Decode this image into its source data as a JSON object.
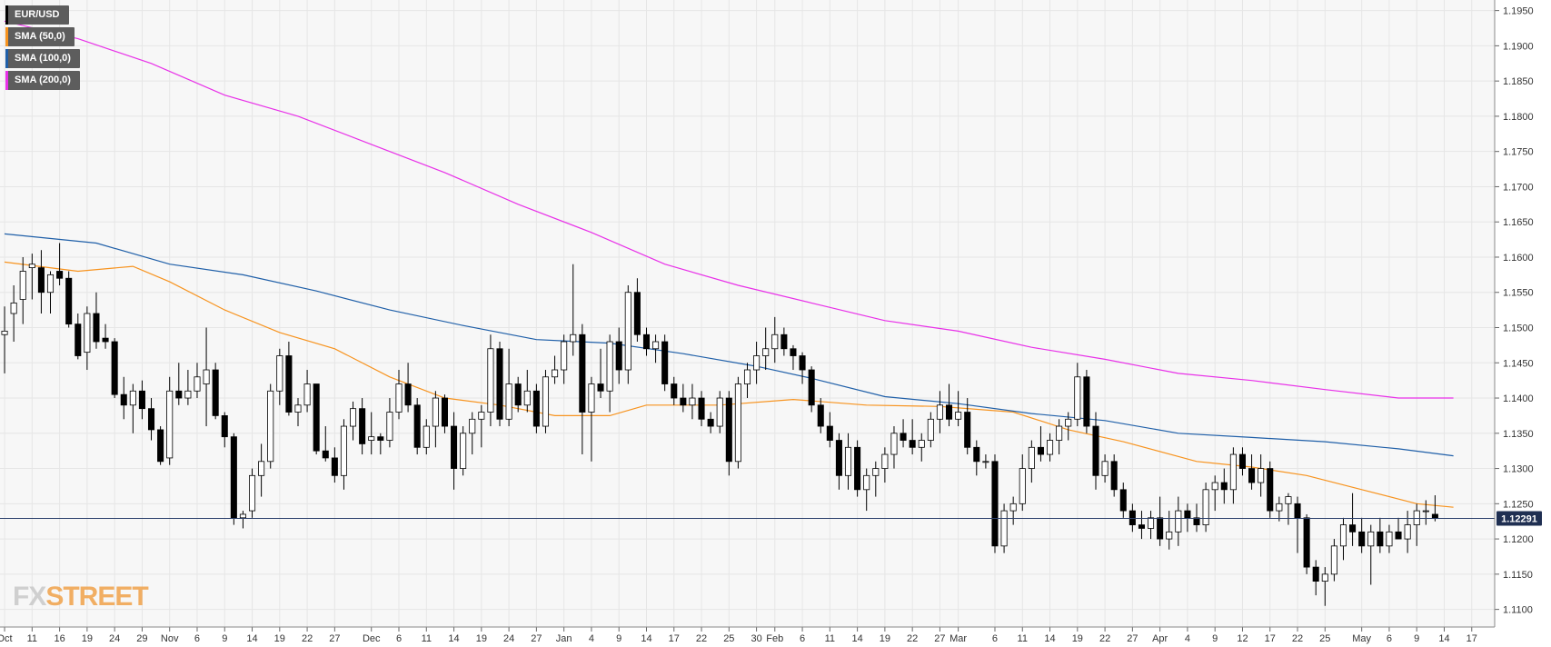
{
  "chart_data": {
    "type": "candlestick",
    "symbol": "EUR/USD",
    "legend": [
      {
        "label": "EUR/USD",
        "color": "#000000"
      },
      {
        "label": "SMA (50,0)",
        "color": "#f7931e"
      },
      {
        "label": "SMA (100,0)",
        "color": "#1f5fa8"
      },
      {
        "label": "SMA (200,0)",
        "color": "#e830e8"
      }
    ],
    "ylim": [
      1.1075,
      1.1965
    ],
    "y_ticks": [
      "1.1100",
      "1.1150",
      "1.1200",
      "1.1250",
      "1.1300",
      "1.1350",
      "1.1400",
      "1.1450",
      "1.1500",
      "1.1550",
      "1.1600",
      "1.1650",
      "1.1700",
      "1.1750",
      "1.1800",
      "1.1850",
      "1.1900",
      "1.1950"
    ],
    "x_ticks": [
      {
        "i": 0,
        "label": "Oct"
      },
      {
        "i": 3,
        "label": "11"
      },
      {
        "i": 6,
        "label": "16"
      },
      {
        "i": 9,
        "label": "19"
      },
      {
        "i": 12,
        "label": "24"
      },
      {
        "i": 15,
        "label": "29"
      },
      {
        "i": 18,
        "label": "Nov"
      },
      {
        "i": 21,
        "label": "6"
      },
      {
        "i": 24,
        "label": "9"
      },
      {
        "i": 27,
        "label": "14"
      },
      {
        "i": 30,
        "label": "19"
      },
      {
        "i": 33,
        "label": "22"
      },
      {
        "i": 36,
        "label": "27"
      },
      {
        "i": 40,
        "label": "Dec"
      },
      {
        "i": 43,
        "label": "6"
      },
      {
        "i": 46,
        "label": "11"
      },
      {
        "i": 49,
        "label": "14"
      },
      {
        "i": 52,
        "label": "19"
      },
      {
        "i": 55,
        "label": "24"
      },
      {
        "i": 58,
        "label": "27"
      },
      {
        "i": 61,
        "label": "Jan"
      },
      {
        "i": 64,
        "label": "4"
      },
      {
        "i": 67,
        "label": "9"
      },
      {
        "i": 70,
        "label": "14"
      },
      {
        "i": 73,
        "label": "17"
      },
      {
        "i": 76,
        "label": "22"
      },
      {
        "i": 79,
        "label": "25"
      },
      {
        "i": 82,
        "label": "30"
      },
      {
        "i": 84,
        "label": "Feb"
      },
      {
        "i": 87,
        "label": "6"
      },
      {
        "i": 90,
        "label": "11"
      },
      {
        "i": 93,
        "label": "14"
      },
      {
        "i": 96,
        "label": "19"
      },
      {
        "i": 99,
        "label": "22"
      },
      {
        "i": 102,
        "label": "27"
      },
      {
        "i": 104,
        "label": "Mar"
      },
      {
        "i": 108,
        "label": "6"
      },
      {
        "i": 111,
        "label": "11"
      },
      {
        "i": 114,
        "label": "14"
      },
      {
        "i": 117,
        "label": "19"
      },
      {
        "i": 120,
        "label": "22"
      },
      {
        "i": 123,
        "label": "27"
      },
      {
        "i": 126,
        "label": "Apr"
      },
      {
        "i": 129,
        "label": "4"
      },
      {
        "i": 132,
        "label": "9"
      },
      {
        "i": 135,
        "label": "12"
      },
      {
        "i": 138,
        "label": "17"
      },
      {
        "i": 141,
        "label": "22"
      },
      {
        "i": 144,
        "label": "25"
      },
      {
        "i": 148,
        "label": "May"
      },
      {
        "i": 151,
        "label": "6"
      },
      {
        "i": 154,
        "label": "9"
      },
      {
        "i": 157,
        "label": "14"
      },
      {
        "i": 160,
        "label": "17"
      }
    ],
    "x_count": 163,
    "current_price": "1.12291",
    "current_value": 1.12291,
    "candles": [
      [
        1.149,
        1.153,
        1.1435,
        1.1495
      ],
      [
        1.152,
        1.156,
        1.148,
        1.1535
      ],
      [
        1.154,
        1.16,
        1.1505,
        1.158
      ],
      [
        1.1585,
        1.1605,
        1.154,
        1.159
      ],
      [
        1.1585,
        1.161,
        1.152,
        1.155
      ],
      [
        1.155,
        1.158,
        1.152,
        1.1575
      ],
      [
        1.158,
        1.162,
        1.156,
        1.157
      ],
      [
        1.157,
        1.158,
        1.15,
        1.1505
      ],
      [
        1.1505,
        1.152,
        1.1455,
        1.146
      ],
      [
        1.1465,
        1.153,
        1.144,
        1.152
      ],
      [
        1.152,
        1.155,
        1.147,
        1.148
      ],
      [
        1.1485,
        1.1505,
        1.147,
        1.148
      ],
      [
        1.148,
        1.1485,
        1.14,
        1.1405
      ],
      [
        1.1405,
        1.143,
        1.137,
        1.139
      ],
      [
        1.139,
        1.142,
        1.135,
        1.141
      ],
      [
        1.141,
        1.1425,
        1.137,
        1.1385
      ],
      [
        1.1385,
        1.14,
        1.134,
        1.1355
      ],
      [
        1.1355,
        1.136,
        1.1305,
        1.131
      ],
      [
        1.1315,
        1.143,
        1.1305,
        1.141
      ],
      [
        1.141,
        1.145,
        1.139,
        1.14
      ],
      [
        1.14,
        1.144,
        1.139,
        1.141
      ],
      [
        1.141,
        1.145,
        1.14,
        1.143
      ],
      [
        1.142,
        1.15,
        1.136,
        1.144
      ],
      [
        1.144,
        1.145,
        1.137,
        1.1375
      ],
      [
        1.1375,
        1.138,
        1.133,
        1.1345
      ],
      [
        1.1345,
        1.135,
        1.122,
        1.123
      ],
      [
        1.123,
        1.124,
        1.1215,
        1.1235
      ],
      [
        1.124,
        1.13,
        1.123,
        1.129
      ],
      [
        1.129,
        1.1335,
        1.126,
        1.131
      ],
      [
        1.131,
        1.142,
        1.13,
        1.141
      ],
      [
        1.141,
        1.147,
        1.139,
        1.146
      ],
      [
        1.146,
        1.148,
        1.1375,
        1.138
      ],
      [
        1.138,
        1.14,
        1.136,
        1.139
      ],
      [
        1.139,
        1.144,
        1.138,
        1.142
      ],
      [
        1.142,
        1.142,
        1.132,
        1.1325
      ],
      [
        1.1325,
        1.136,
        1.131,
        1.1315
      ],
      [
        1.1315,
        1.133,
        1.128,
        1.129
      ],
      [
        1.129,
        1.137,
        1.127,
        1.136
      ],
      [
        1.136,
        1.1395,
        1.134,
        1.1385
      ],
      [
        1.1385,
        1.14,
        1.132,
        1.1335
      ],
      [
        1.134,
        1.138,
        1.132,
        1.1345
      ],
      [
        1.1345,
        1.135,
        1.132,
        1.134
      ],
      [
        1.134,
        1.14,
        1.133,
        1.138
      ],
      [
        1.138,
        1.144,
        1.137,
        1.142
      ],
      [
        1.142,
        1.145,
        1.138,
        1.139
      ],
      [
        1.139,
        1.14,
        1.132,
        1.133
      ],
      [
        1.133,
        1.137,
        1.132,
        1.136
      ],
      [
        1.136,
        1.141,
        1.133,
        1.14
      ],
      [
        1.14,
        1.1405,
        1.135,
        1.136
      ],
      [
        1.136,
        1.138,
        1.127,
        1.13
      ],
      [
        1.13,
        1.136,
        1.129,
        1.135
      ],
      [
        1.135,
        1.138,
        1.132,
        1.137
      ],
      [
        1.137,
        1.139,
        1.133,
        1.138
      ],
      [
        1.138,
        1.149,
        1.136,
        1.147
      ],
      [
        1.147,
        1.148,
        1.136,
        1.137
      ],
      [
        1.137,
        1.147,
        1.136,
        1.142
      ],
      [
        1.142,
        1.143,
        1.138,
        1.139
      ],
      [
        1.139,
        1.144,
        1.138,
        1.141
      ],
      [
        1.141,
        1.142,
        1.135,
        1.136
      ],
      [
        1.136,
        1.144,
        1.135,
        1.143
      ],
      [
        1.143,
        1.146,
        1.142,
        1.144
      ],
      [
        1.144,
        1.149,
        1.142,
        1.148
      ],
      [
        1.148,
        1.159,
        1.146,
        1.149
      ],
      [
        1.149,
        1.1505,
        1.132,
        1.138
      ],
      [
        1.138,
        1.143,
        1.131,
        1.142
      ],
      [
        1.142,
        1.147,
        1.14,
        1.141
      ],
      [
        1.141,
        1.149,
        1.138,
        1.148
      ],
      [
        1.148,
        1.15,
        1.142,
        1.144
      ],
      [
        1.144,
        1.156,
        1.142,
        1.155
      ],
      [
        1.155,
        1.157,
        1.148,
        1.149
      ],
      [
        1.149,
        1.15,
        1.146,
        1.147
      ],
      [
        1.147,
        1.149,
        1.145,
        1.148
      ],
      [
        1.148,
        1.149,
        1.141,
        1.142
      ],
      [
        1.142,
        1.143,
        1.139,
        1.14
      ],
      [
        1.14,
        1.142,
        1.138,
        1.139
      ],
      [
        1.139,
        1.142,
        1.137,
        1.14
      ],
      [
        1.14,
        1.141,
        1.136,
        1.137
      ],
      [
        1.137,
        1.138,
        1.135,
        1.136
      ],
      [
        1.136,
        1.141,
        1.135,
        1.14
      ],
      [
        1.14,
        1.141,
        1.129,
        1.131
      ],
      [
        1.131,
        1.143,
        1.13,
        1.142
      ],
      [
        1.142,
        1.145,
        1.14,
        1.144
      ],
      [
        1.144,
        1.148,
        1.142,
        1.146
      ],
      [
        1.146,
        1.15,
        1.144,
        1.147
      ],
      [
        1.147,
        1.1515,
        1.145,
        1.149
      ],
      [
        1.149,
        1.15,
        1.146,
        1.147
      ],
      [
        1.147,
        1.1475,
        1.144,
        1.146
      ],
      [
        1.146,
        1.1465,
        1.142,
        1.144
      ],
      [
        1.144,
        1.1445,
        1.138,
        1.139
      ],
      [
        1.139,
        1.14,
        1.135,
        1.136
      ],
      [
        1.136,
        1.138,
        1.133,
        1.134
      ],
      [
        1.134,
        1.135,
        1.127,
        1.129
      ],
      [
        1.129,
        1.135,
        1.127,
        1.133
      ],
      [
        1.133,
        1.134,
        1.126,
        1.127
      ],
      [
        1.127,
        1.13,
        1.124,
        1.129
      ],
      [
        1.129,
        1.131,
        1.126,
        1.13
      ],
      [
        1.13,
        1.133,
        1.128,
        1.132
      ],
      [
        1.132,
        1.136,
        1.13,
        1.135
      ],
      [
        1.135,
        1.137,
        1.133,
        1.134
      ],
      [
        1.134,
        1.137,
        1.132,
        1.133
      ],
      [
        1.133,
        1.135,
        1.131,
        1.134
      ],
      [
        1.134,
        1.138,
        1.133,
        1.137
      ],
      [
        1.137,
        1.141,
        1.135,
        1.139
      ],
      [
        1.139,
        1.142,
        1.136,
        1.137
      ],
      [
        1.137,
        1.141,
        1.136,
        1.138
      ],
      [
        1.138,
        1.14,
        1.132,
        1.133
      ],
      [
        1.133,
        1.134,
        1.129,
        1.131
      ],
      [
        1.131,
        1.132,
        1.13,
        1.131
      ],
      [
        1.131,
        1.132,
        1.118,
        1.119
      ],
      [
        1.119,
        1.125,
        1.118,
        1.124
      ],
      [
        1.124,
        1.126,
        1.122,
        1.125
      ],
      [
        1.125,
        1.132,
        1.124,
        1.13
      ],
      [
        1.13,
        1.134,
        1.128,
        1.133
      ],
      [
        1.133,
        1.136,
        1.131,
        1.132
      ],
      [
        1.132,
        1.135,
        1.131,
        1.134
      ],
      [
        1.134,
        1.137,
        1.132,
        1.136
      ],
      [
        1.136,
        1.138,
        1.134,
        1.137
      ],
      [
        1.137,
        1.145,
        1.136,
        1.143
      ],
      [
        1.143,
        1.144,
        1.135,
        1.136
      ],
      [
        1.136,
        1.138,
        1.127,
        1.129
      ],
      [
        1.129,
        1.132,
        1.128,
        1.131
      ],
      [
        1.131,
        1.132,
        1.126,
        1.127
      ],
      [
        1.127,
        1.128,
        1.123,
        1.124
      ],
      [
        1.124,
        1.125,
        1.121,
        1.122
      ],
      [
        1.122,
        1.124,
        1.12,
        1.1215
      ],
      [
        1.1215,
        1.124,
        1.12,
        1.123
      ],
      [
        1.123,
        1.126,
        1.119,
        1.12
      ],
      [
        1.12,
        1.124,
        1.1185,
        1.121
      ],
      [
        1.121,
        1.126,
        1.119,
        1.124
      ],
      [
        1.124,
        1.125,
        1.121,
        1.123
      ],
      [
        1.123,
        1.125,
        1.121,
        1.122
      ],
      [
        1.122,
        1.128,
        1.121,
        1.127
      ],
      [
        1.127,
        1.129,
        1.124,
        1.128
      ],
      [
        1.128,
        1.13,
        1.125,
        1.127
      ],
      [
        1.127,
        1.133,
        1.125,
        1.132
      ],
      [
        1.132,
        1.133,
        1.129,
        1.13
      ],
      [
        1.13,
        1.132,
        1.127,
        1.128
      ],
      [
        1.128,
        1.132,
        1.126,
        1.13
      ],
      [
        1.13,
        1.131,
        1.123,
        1.124
      ],
      [
        1.124,
        1.126,
        1.1225,
        1.125
      ],
      [
        1.125,
        1.1265,
        1.122,
        1.126
      ],
      [
        1.125,
        1.126,
        1.118,
        1.123
      ],
      [
        1.123,
        1.1235,
        1.115,
        1.116
      ],
      [
        1.116,
        1.117,
        1.112,
        1.114
      ],
      [
        1.114,
        1.116,
        1.1105,
        1.115
      ],
      [
        1.115,
        1.12,
        1.114,
        1.119
      ],
      [
        1.119,
        1.123,
        1.117,
        1.122
      ],
      [
        1.122,
        1.1265,
        1.119,
        1.121
      ],
      [
        1.121,
        1.123,
        1.118,
        1.119
      ],
      [
        1.119,
        1.122,
        1.1135,
        1.121
      ],
      [
        1.121,
        1.123,
        1.118,
        1.119
      ],
      [
        1.119,
        1.122,
        1.118,
        1.121
      ],
      [
        1.121,
        1.123,
        1.12,
        1.12
      ],
      [
        1.12,
        1.124,
        1.118,
        1.122
      ],
      [
        1.122,
        1.125,
        1.119,
        1.124
      ],
      [
        1.124,
        1.1255,
        1.122,
        1.124
      ],
      [
        1.1235,
        1.1262,
        1.1225,
        1.1229
      ]
    ],
    "sma50": [
      [
        0,
        1.1593
      ],
      [
        8,
        1.158
      ],
      [
        14,
        1.1587
      ],
      [
        18,
        1.1565
      ],
      [
        24,
        1.1525
      ],
      [
        30,
        1.1493
      ],
      [
        36,
        1.147
      ],
      [
        42,
        1.143
      ],
      [
        48,
        1.14
      ],
      [
        54,
        1.139
      ],
      [
        60,
        1.1375
      ],
      [
        66,
        1.1375
      ],
      [
        70,
        1.139
      ],
      [
        78,
        1.139
      ],
      [
        86,
        1.1398
      ],
      [
        94,
        1.139
      ],
      [
        102,
        1.1388
      ],
      [
        110,
        1.138
      ],
      [
        116,
        1.1355
      ],
      [
        122,
        1.1338
      ],
      [
        130,
        1.131
      ],
      [
        136,
        1.1302
      ],
      [
        142,
        1.129
      ],
      [
        148,
        1.127
      ],
      [
        154,
        1.125
      ],
      [
        158,
        1.1245
      ]
    ],
    "sma100": [
      [
        0,
        1.1633
      ],
      [
        10,
        1.162
      ],
      [
        18,
        1.159
      ],
      [
        26,
        1.1575
      ],
      [
        34,
        1.1552
      ],
      [
        42,
        1.1525
      ],
      [
        50,
        1.1503
      ],
      [
        58,
        1.1483
      ],
      [
        66,
        1.1478
      ],
      [
        74,
        1.1463
      ],
      [
        82,
        1.1445
      ],
      [
        88,
        1.1428
      ],
      [
        96,
        1.1402
      ],
      [
        104,
        1.1392
      ],
      [
        112,
        1.1378
      ],
      [
        120,
        1.1368
      ],
      [
        128,
        1.135
      ],
      [
        136,
        1.1344
      ],
      [
        144,
        1.1338
      ],
      [
        152,
        1.1328
      ],
      [
        158,
        1.1318
      ]
    ],
    "sma200": [
      [
        0,
        1.1935
      ],
      [
        8,
        1.191
      ],
      [
        16,
        1.1875
      ],
      [
        24,
        1.183
      ],
      [
        32,
        1.18
      ],
      [
        40,
        1.176
      ],
      [
        48,
        1.172
      ],
      [
        56,
        1.1675
      ],
      [
        64,
        1.1635
      ],
      [
        72,
        1.159
      ],
      [
        80,
        1.156
      ],
      [
        88,
        1.1535
      ],
      [
        96,
        1.151
      ],
      [
        104,
        1.1495
      ],
      [
        112,
        1.1472
      ],
      [
        120,
        1.1455
      ],
      [
        128,
        1.1435
      ],
      [
        136,
        1.1425
      ],
      [
        144,
        1.1412
      ],
      [
        152,
        1.14
      ],
      [
        158,
        1.14
      ]
    ]
  },
  "watermark": {
    "part1": "FX",
    "part2": "STREET"
  }
}
